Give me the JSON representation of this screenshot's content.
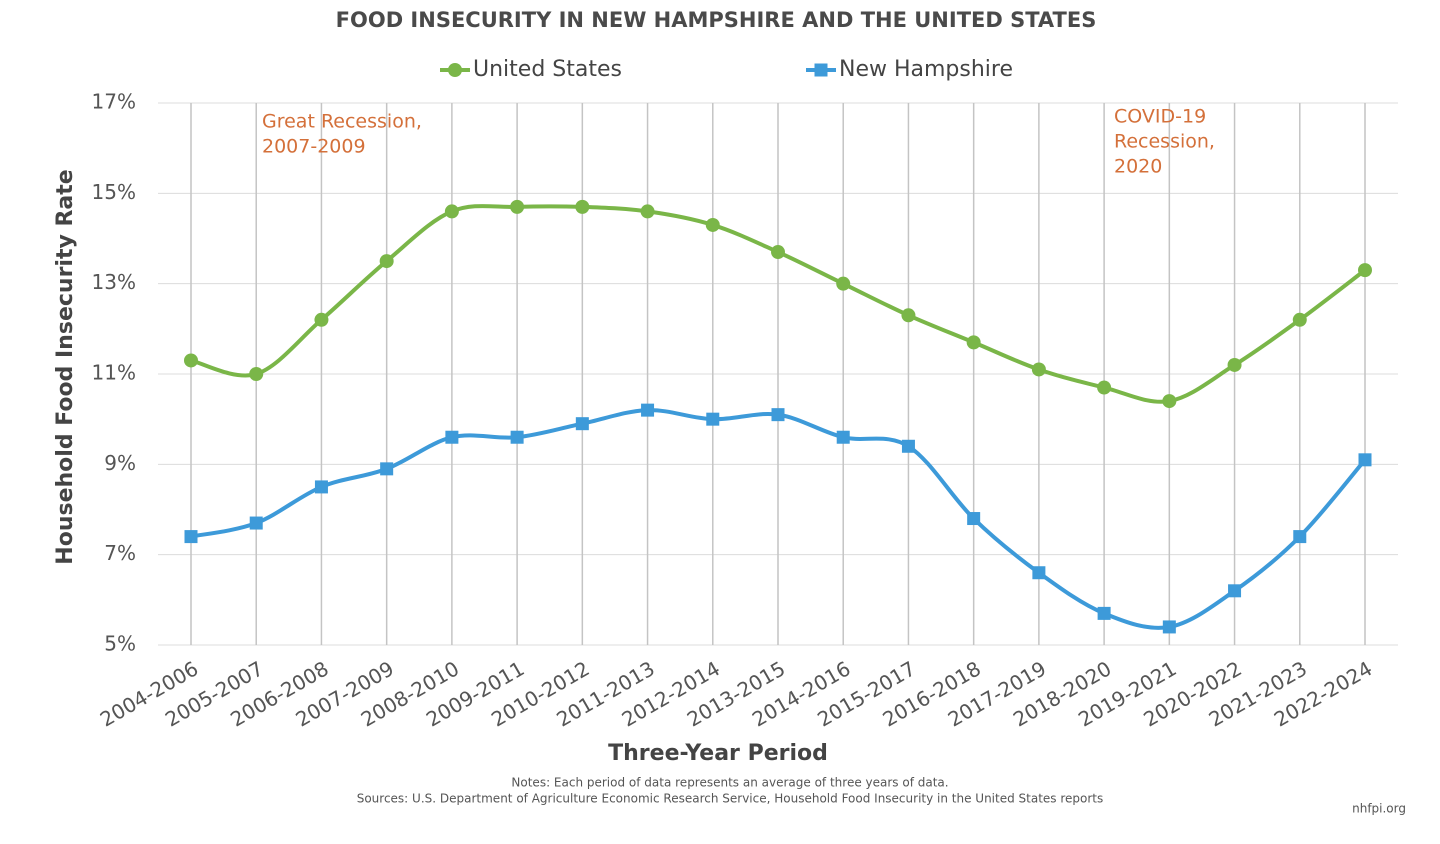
{
  "chart_data": {
    "type": "line",
    "title": "FOOD INSECURITY IN NEW HAMPSHIRE AND THE UNITED STATES",
    "x_label": "Three-Year Period",
    "y_label": "Household Food Insecurity Rate",
    "categories": [
      "2004-2006",
      "2005-2007",
      "2006-2008",
      "2007-2009",
      "2008-2010",
      "2009-2011",
      "2010-2012",
      "2011-2013",
      "2012-2014",
      "2013-2015",
      "2014-2016",
      "2015-2017",
      "2016-2018",
      "2017-2019",
      "2018-2020",
      "2019-2021",
      "2020-2022",
      "2021-2023",
      "2022-2024"
    ],
    "series": [
      {
        "name": "United States",
        "color": "#7ab648",
        "marker": "circle",
        "values": [
          11.3,
          11.0,
          12.2,
          13.5,
          14.6,
          14.7,
          14.7,
          14.6,
          14.3,
          13.7,
          13.0,
          12.3,
          11.7,
          11.1,
          10.7,
          10.4,
          11.2,
          12.2,
          13.3
        ]
      },
      {
        "name": "New Hampshire",
        "color": "#3d9ad9",
        "marker": "square",
        "values": [
          7.4,
          7.7,
          8.5,
          8.9,
          9.6,
          9.6,
          9.9,
          10.2,
          10.0,
          10.1,
          9.6,
          9.4,
          7.8,
          6.6,
          5.7,
          5.4,
          6.2,
          7.4,
          9.1
        ]
      }
    ],
    "ylim": [
      5,
      17
    ],
    "yticks": [
      {
        "value": 5,
        "label": "5%"
      },
      {
        "value": 7,
        "label": "7%"
      },
      {
        "value": 9,
        "label": "9%"
      },
      {
        "value": 11,
        "label": "11%"
      },
      {
        "value": 13,
        "label": "13%"
      },
      {
        "value": 15,
        "label": "15%"
      },
      {
        "value": 17,
        "label": "17%"
      }
    ],
    "grid": true,
    "legend": "top",
    "annotations": [
      {
        "lines": [
          "Great Recession,",
          "2007-2009"
        ],
        "color": "#d4703a"
      },
      {
        "lines": [
          "COVID-19",
          "Recession,",
          "2020"
        ],
        "color": "#d4703a"
      }
    ],
    "notes": "Notes: Each period of data represents an average of three years of data.",
    "sources": "Sources: U.S. Department of Agriculture Economic Research Service, Household Food Insecurity in the United States reports",
    "credit": "nhfpi.org"
  }
}
